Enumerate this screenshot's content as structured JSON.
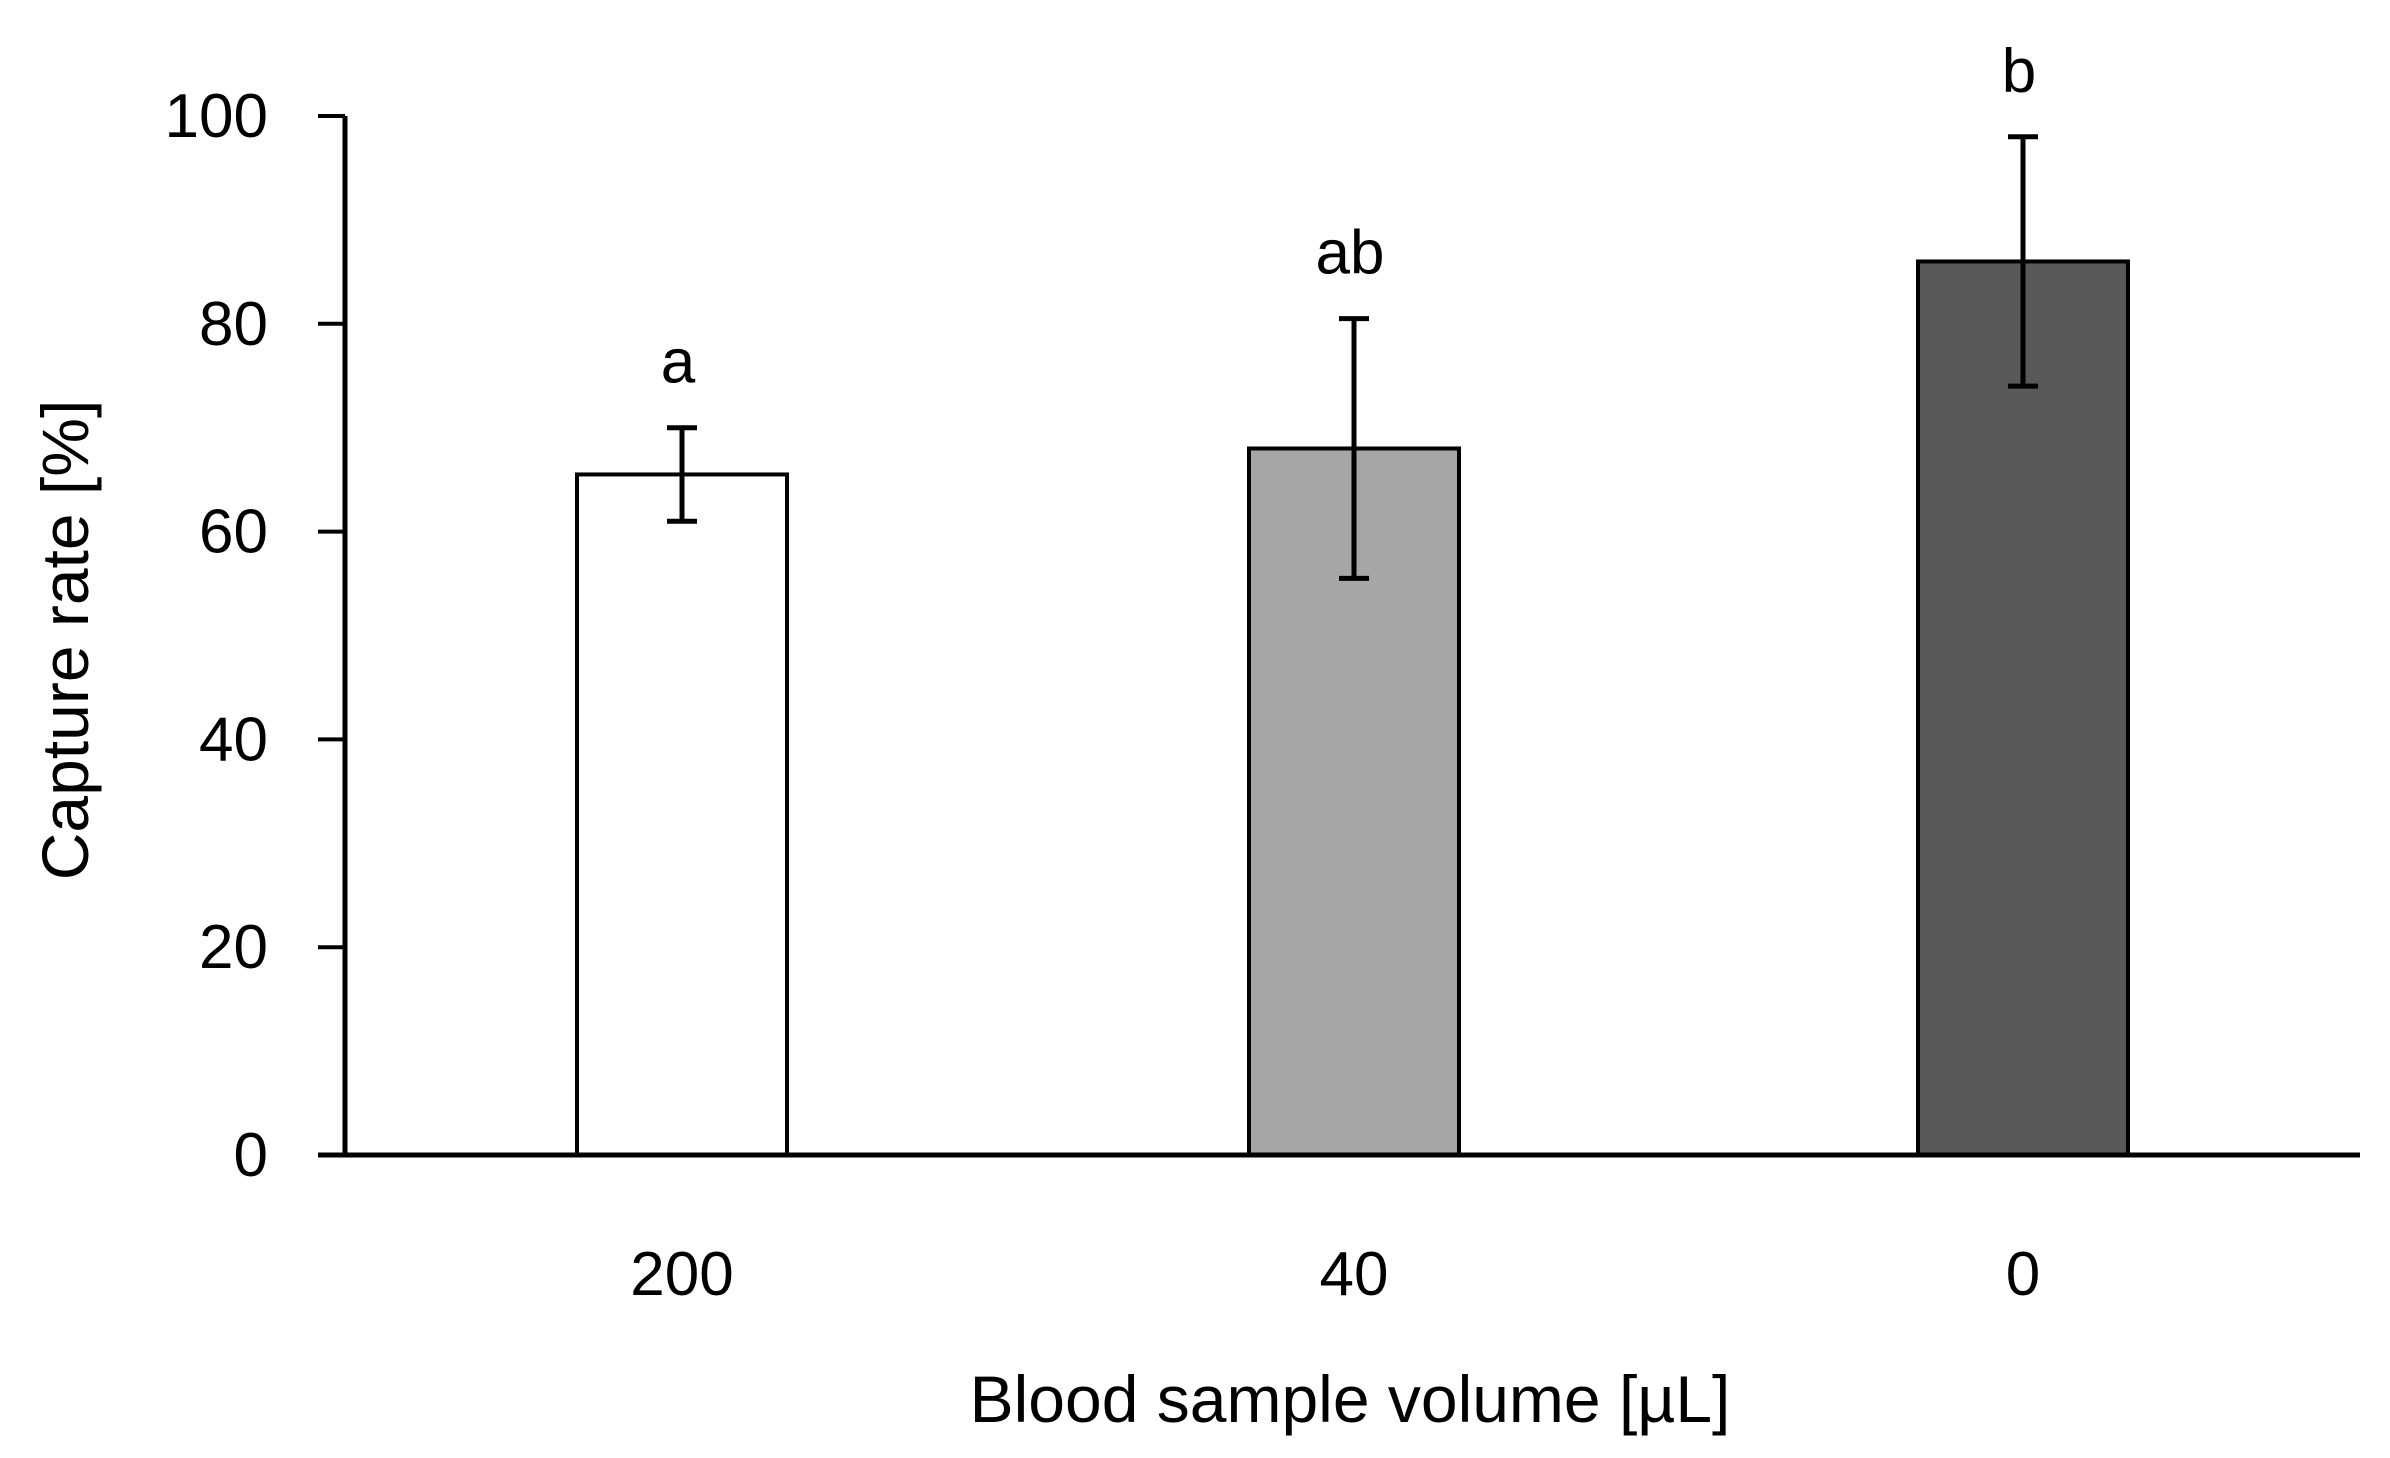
{
  "chart_data": {
    "type": "bar",
    "title": "",
    "xlabel": "Blood sample volume [µL]",
    "ylabel": "Capture rate [%]",
    "ylim": [
      0,
      100
    ],
    "yticks": [
      0,
      20,
      40,
      60,
      80,
      100
    ],
    "yticks_text": [
      "0",
      "20",
      "40",
      "60",
      "80",
      "100"
    ],
    "categories": [
      "200",
      "40",
      "0"
    ],
    "values": [
      65.5,
      68,
      86
    ],
    "errors": [
      4.5,
      12.5,
      12
    ],
    "significance": [
      "a",
      "ab",
      "b"
    ],
    "bar_colors": [
      "#ffffff",
      "#a6a6a6",
      "#595959"
    ],
    "grid": false,
    "legend": "none"
  }
}
